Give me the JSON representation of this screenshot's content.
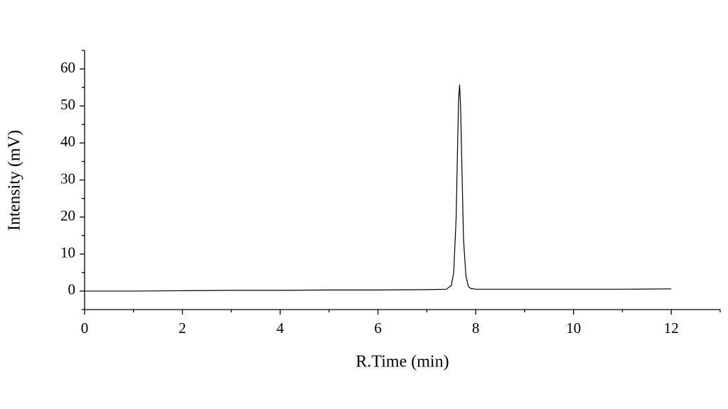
{
  "chart_data": {
    "type": "line",
    "x_label": "R.Time (min)",
    "y_label": "Intensity (mV)",
    "x": [
      0,
      1,
      2,
      3,
      4,
      5,
      6,
      7,
      7.4,
      7.5,
      7.55,
      7.6,
      7.63,
      7.65,
      7.67,
      7.69,
      7.72,
      7.75,
      7.8,
      7.85,
      7.9,
      8,
      9,
      10,
      11,
      12
    ],
    "series": [
      {
        "color": "#000000",
        "values": [
          0,
          0,
          0.1,
          0.2,
          0.2,
          0.3,
          0.3,
          0.4,
          0.5,
          1.5,
          5,
          20,
          40,
          52,
          55.7,
          50,
          32,
          14,
          4,
          1.2,
          0.7,
          0.5,
          0.5,
          0.5,
          0.5,
          0.6
        ]
      }
    ],
    "xlim": [
      0,
      13
    ],
    "xticks": [
      0,
      2,
      4,
      6,
      8,
      10,
      12
    ],
    "ylim": [
      -5,
      65
    ],
    "yticks": [
      0,
      10,
      20,
      30,
      40,
      50,
      60
    ],
    "grid": false
  }
}
